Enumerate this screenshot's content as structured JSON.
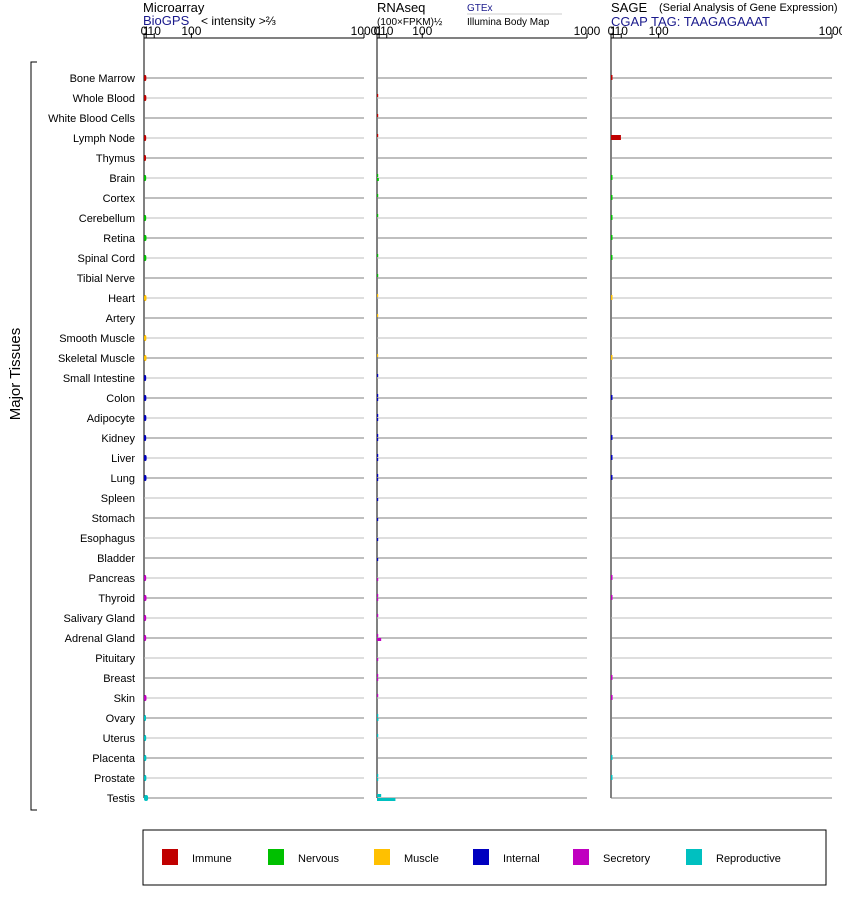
{
  "panels": [
    {
      "title": "Microarray",
      "subtitle": "BioGPS",
      "unit_label": "< intensity >⅔",
      "source_link": "",
      "source_sub": "",
      "ticks": [
        "0",
        "1",
        "10",
        "100",
        "1000"
      ]
    },
    {
      "title": "RNAseq",
      "subtitle": "",
      "unit_label": "(100×FPKM)½",
      "source_link": "GTEx",
      "source_sub": "Illumina Body Map",
      "ticks": [
        "0",
        "1",
        "10",
        "100",
        "1000"
      ]
    },
    {
      "title": "SAGE",
      "subtitle": "CGAP TAG: TAAGAGAAAT",
      "unit_label": "(Serial Analysis of Gene Expression)",
      "source_link": "",
      "source_sub": "",
      "ticks": [
        "0",
        "1",
        "10",
        "100",
        "1000"
      ]
    }
  ],
  "y_group_label": "Major Tissues",
  "colors": {
    "Immune": "#c00000",
    "Nervous": "#00c000",
    "Muscle": "#ffc000",
    "Internal": "#0000c0",
    "Secretory": "#c000c0",
    "Reproductive": "#00c0c0"
  },
  "legend": [
    {
      "label": "Immune",
      "color": "#c00000"
    },
    {
      "label": "Nervous",
      "color": "#00c000"
    },
    {
      "label": "Muscle",
      "color": "#ffc000"
    },
    {
      "label": "Internal",
      "color": "#0000c0"
    },
    {
      "label": "Secretory",
      "color": "#c000c0"
    },
    {
      "label": "Reproductive",
      "color": "#00c0c0"
    }
  ],
  "chart_data": {
    "type": "bar",
    "orientation": "horizontal",
    "x_scale": "power",
    "xlim": [
      0,
      1000
    ],
    "categories": [
      "Bone Marrow",
      "Whole Blood",
      "White Blood Cells",
      "Lymph Node",
      "Thymus",
      "Brain",
      "Cortex",
      "Cerebellum",
      "Retina",
      "Spinal Cord",
      "Tibial Nerve",
      "Heart",
      "Artery",
      "Smooth Muscle",
      "Skeletal Muscle",
      "Small Intestine",
      "Colon",
      "Adipocyte",
      "Kidney",
      "Liver",
      "Lung",
      "Spleen",
      "Stomach",
      "Esophagus",
      "Bladder",
      "Pancreas",
      "Thyroid",
      "Salivary Gland",
      "Adrenal Gland",
      "Pituitary",
      "Breast",
      "Skin",
      "Ovary",
      "Uterus",
      "Placenta",
      "Prostate",
      "Testis"
    ],
    "groups": [
      "Immune",
      "Immune",
      "Immune",
      "Immune",
      "Immune",
      "Nervous",
      "Nervous",
      "Nervous",
      "Nervous",
      "Nervous",
      "Nervous",
      "Muscle",
      "Muscle",
      "Muscle",
      "Muscle",
      "Internal",
      "Internal",
      "Internal",
      "Internal",
      "Internal",
      "Internal",
      "Internal",
      "Internal",
      "Internal",
      "Internal",
      "Secretory",
      "Secretory",
      "Secretory",
      "Secretory",
      "Secretory",
      "Secretory",
      "Secretory",
      "Reproductive",
      "Reproductive",
      "Reproductive",
      "Reproductive",
      "Reproductive"
    ],
    "series": [
      {
        "name": "Microarray",
        "values": [
          1.1,
          1.1,
          null,
          1.0,
          0.9,
          1.0,
          null,
          1.0,
          1.2,
          1.1,
          null,
          1.2,
          null,
          1.1,
          1.2,
          1.0,
          1.1,
          1.1,
          1.0,
          1.3,
          1.2,
          null,
          null,
          null,
          null,
          1.0,
          1.2,
          1.0,
          1.0,
          null,
          null,
          1.2,
          0.9,
          1.0,
          1.1,
          1.1,
          2.5
        ]
      },
      {
        "name": "RNAseq",
        "values": [
          [
            0,
            0
          ],
          [
            0.002,
            0
          ],
          [
            0.002,
            0
          ],
          [
            0.002,
            0
          ],
          [
            0,
            0
          ],
          [
            0.04,
            0.8
          ],
          [
            0.25,
            0
          ],
          [
            0.05,
            0
          ],
          [
            0,
            0
          ],
          [
            0.003,
            0
          ],
          [
            0.002,
            0
          ],
          [
            0.002,
            0
          ],
          [
            0.001,
            0
          ],
          [
            0,
            0
          ],
          [
            0.05,
            0
          ],
          [
            0.12,
            0
          ],
          [
            0.003,
            0.003
          ],
          [
            0.003,
            0.003
          ],
          [
            0.003,
            0.003
          ],
          [
            0.003,
            0.003
          ],
          [
            0.003,
            0.003
          ],
          [
            0,
            0.003
          ],
          [
            0,
            0.003
          ],
          [
            0,
            0.003
          ],
          [
            0,
            0.003
          ],
          [
            0,
            0.003
          ],
          [
            0.003,
            0.003
          ],
          [
            0.002,
            0
          ],
          [
            0.01,
            2.8
          ],
          [
            0,
            0.002
          ],
          [
            0.002,
            0.002
          ],
          [
            0.002,
            0
          ],
          [
            0.002,
            0.55
          ],
          [
            0.002,
            0
          ],
          [
            0,
            0
          ],
          [
            0.002,
            0.002
          ],
          [
            2.8,
            26
          ]
        ]
      },
      {
        "name": "SAGE",
        "values": [
          0.003,
          null,
          null,
          9.5,
          null,
          0.002,
          0.002,
          0.002,
          0.002,
          0.002,
          null,
          0.001,
          null,
          null,
          0.001,
          null,
          0.003,
          null,
          0.003,
          0.003,
          0.003,
          null,
          null,
          null,
          null,
          0.003,
          0.003,
          null,
          null,
          null,
          0.002,
          0.6,
          null,
          null,
          0.002,
          0.002,
          null
        ]
      }
    ]
  }
}
